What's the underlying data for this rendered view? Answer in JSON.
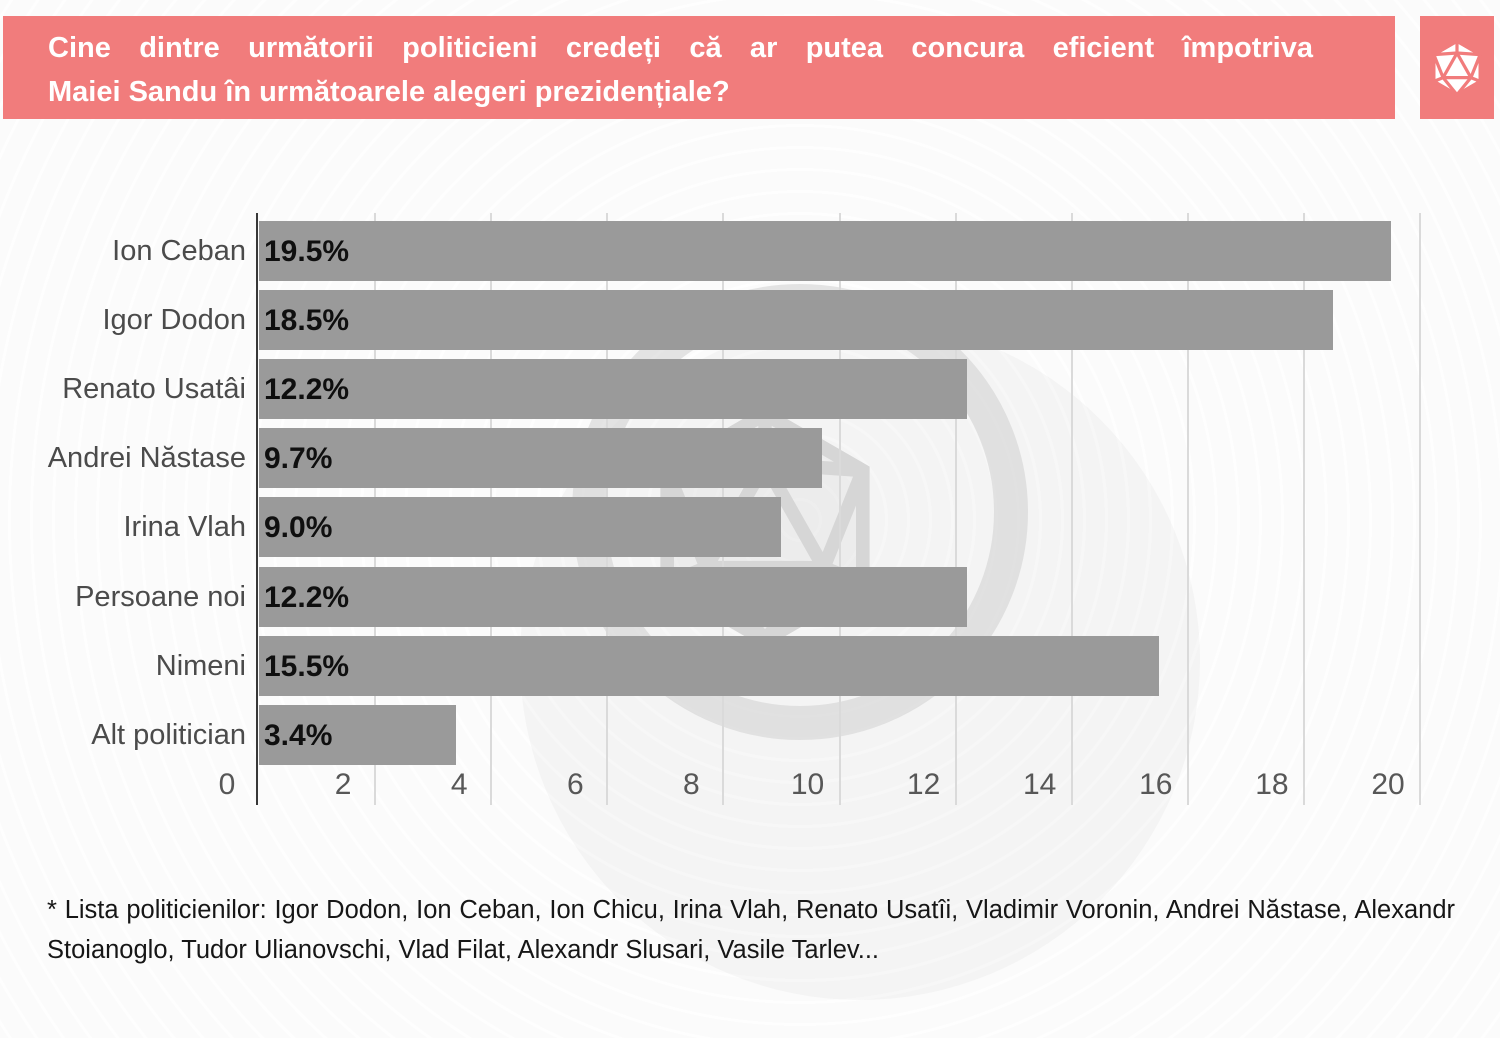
{
  "header": {
    "title_line1": "Cine dintre următorii politicieni credeți că ar putea concura eficient împotriva",
    "title_line2": "Maiei Sandu în următoarele alegeri prezidențiale?",
    "banner_color": "#f17c7c",
    "logo_icon": "d20-polyhedron-icon"
  },
  "chart_data": {
    "type": "bar",
    "orientation": "horizontal",
    "categories": [
      "Ion Ceban",
      "Igor Dodon",
      "Renato Usatâi",
      "Andrei Năstase",
      "Irina Vlah",
      "Persoane noi",
      "Nimeni",
      "Alt politician"
    ],
    "values": [
      19.5,
      18.5,
      12.2,
      9.7,
      9.0,
      12.2,
      15.5,
      3.4
    ],
    "value_labels": [
      "19.5%",
      "18.5%",
      "12.2%",
      "9.7%",
      "9.0%",
      "12.2%",
      "15.5%",
      "3.4%"
    ],
    "title": "",
    "xlabel": "",
    "ylabel": "",
    "xlim": [
      0,
      20
    ],
    "x_ticks": [
      0,
      2,
      4,
      6,
      8,
      10,
      12,
      14,
      16,
      18,
      20
    ],
    "grid": true,
    "legend": false,
    "bar_color": "#9a9a9a",
    "axis_color": "#383838",
    "gridline_color": "#dadada",
    "watermark": "d20-logo-ring-watermark"
  },
  "footnote": {
    "text": "* Lista politicienilor: Igor Dodon, Ion Ceban, Ion Chicu, Irina Vlah, Renato Usatîi, Vladimir Voronin, Andrei Năstase, Alexandr Stoianoglo, Tudor Ulianovschi, Vlad Filat, Alexandr Slusari, Vasile Tarlev..."
  }
}
